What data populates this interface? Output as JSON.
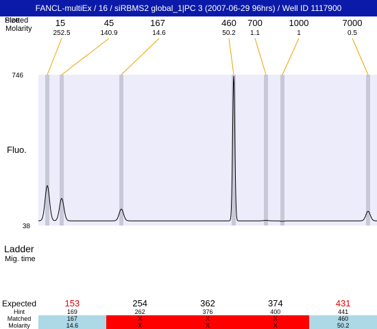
{
  "window": {
    "title": "FANCL-multiEx / 16 / siRBMS2 global_1|PC 3 (2007-06-29 96hrs) / Well ID 1117900"
  },
  "labels": {
    "size_label_a": "Size",
    "size_label_b": "Plotted",
    "molarity_label": "Molarity",
    "fluo_label": "Fluo.",
    "ladder_label": "Ladder",
    "mig_time_label": "Mig. time",
    "expected_label": "Expected",
    "hint_label": "Hint",
    "matched_label": "Matched",
    "molarity_row_label": "Molarity"
  },
  "colors": {
    "title_bg": "#0b1aa8",
    "plot_bg": "#ececfa",
    "band": "#c8c8d8",
    "marker_line": "#f0a000",
    "ok_cell": "#add8e6",
    "fail_cell": "#ff0000",
    "warn_text": "#e00000"
  },
  "chart_data": {
    "type": "line",
    "ylabel": "Fluo.",
    "ylim": [
      38,
      746
    ],
    "y_ticks": [
      "746",
      "38"
    ],
    "markers": [
      {
        "size": "15",
        "molarity": "252.5"
      },
      {
        "size": "45",
        "molarity": "140.9"
      },
      {
        "size": "167",
        "molarity": "14.6"
      },
      {
        "size": "460",
        "molarity": "50.2"
      },
      {
        "size": "700",
        "molarity": "1.1"
      },
      {
        "size": "1000",
        "molarity": "1"
      },
      {
        "size": "7000",
        "molarity": "0.5"
      }
    ],
    "trace": {
      "baseline": 60,
      "peaks": [
        {
          "t": 13,
          "h": 225
        },
        {
          "t": 34,
          "h": 165
        },
        {
          "t": 121,
          "h": 115
        },
        {
          "t": 285,
          "h": 740
        },
        {
          "t": 332,
          "h": 62
        },
        {
          "t": 356,
          "h": 58
        },
        {
          "t": 481,
          "h": 105
        }
      ]
    }
  },
  "expected_table": {
    "columns": [
      {
        "expected": "153",
        "hint": "169",
        "matched": "167",
        "molarity": "14.6",
        "status": "ok"
      },
      {
        "expected": "254",
        "hint": "262",
        "matched": "X",
        "molarity": "X",
        "status": "fail"
      },
      {
        "expected": "362",
        "hint": "376",
        "matched": "X",
        "molarity": "X",
        "status": "fail"
      },
      {
        "expected": "374",
        "hint": "400",
        "matched": "X",
        "molarity": "X",
        "status": "fail"
      },
      {
        "expected": "431",
        "hint": "441",
        "matched": "460",
        "molarity": "50.2",
        "status": "ok"
      }
    ]
  }
}
